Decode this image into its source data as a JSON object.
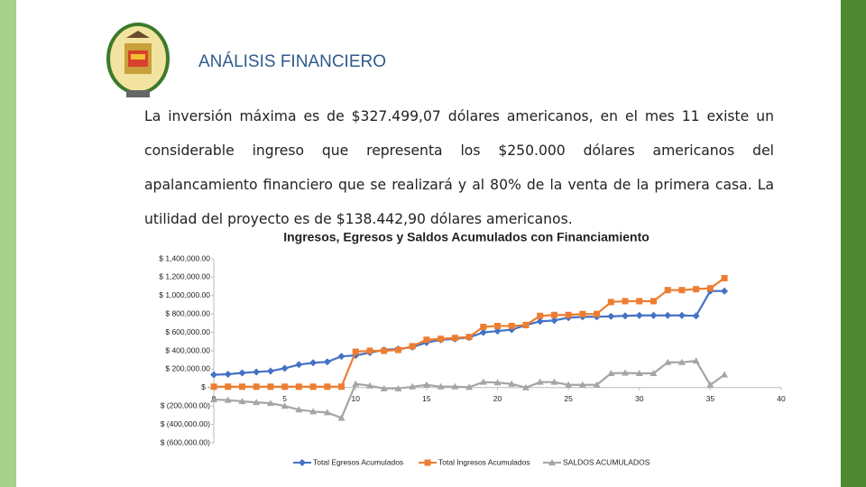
{
  "header": {
    "title": "ANÁLISIS FINANCIERO"
  },
  "paragraph": "La inversión máxima es de $327.499,07 dólares americanos, en el mes 11 existe un considerable ingreso que representa los $250.000 dólares americanos del apalancamiento financiero que se realizará y al 80% de la venta de la primera casa. La utilidad del proyecto es de $138.442,90 dólares americanos.",
  "chart_data": {
    "type": "line",
    "title": "Ingresos, Egresos y Saldos Acumulados con Financiamiento",
    "x": [
      0,
      1,
      2,
      3,
      4,
      5,
      6,
      7,
      8,
      9,
      10,
      11,
      12,
      13,
      14,
      15,
      16,
      17,
      18,
      19,
      20,
      21,
      22,
      23,
      24,
      25,
      26,
      27,
      28,
      29,
      30,
      31,
      32,
      33,
      34,
      35,
      36
    ],
    "series": [
      {
        "name": "Total Egresos Acumulados",
        "color": "#4472c4",
        "marker": "diamond",
        "values": [
          140000,
          145000,
          160000,
          170000,
          180000,
          210000,
          250000,
          270000,
          280000,
          340000,
          350000,
          380000,
          410000,
          420000,
          440000,
          490000,
          520000,
          530000,
          545000,
          600000,
          615000,
          630000,
          680000,
          720000,
          730000,
          760000,
          770000,
          770000,
          775000,
          780000,
          785000,
          785000,
          785000,
          785000,
          780000,
          1050000,
          1050000
        ]
      },
      {
        "name": "Total Ingresos Acumulados",
        "color": "#ed7d31",
        "marker": "square",
        "values": [
          10000,
          10000,
          10000,
          10000,
          10000,
          10000,
          10000,
          10000,
          10000,
          10000,
          390000,
          400000,
          400000,
          410000,
          450000,
          520000,
          530000,
          540000,
          550000,
          660000,
          670000,
          670000,
          680000,
          780000,
          790000,
          790000,
          800000,
          800000,
          930000,
          940000,
          940000,
          940000,
          1060000,
          1060000,
          1070000,
          1080000,
          1190000
        ]
      },
      {
        "name": "SALDOS ACUMULADOS",
        "color": "#a5a5a5",
        "marker": "triangle",
        "values": [
          -130000,
          -135000,
          -150000,
          -160000,
          -170000,
          -200000,
          -240000,
          -260000,
          -270000,
          -330000,
          40000,
          20000,
          -10000,
          -10000,
          10000,
          30000,
          10000,
          10000,
          5000,
          60000,
          55000,
          40000,
          0,
          60000,
          60000,
          30000,
          30000,
          30000,
          155000,
          160000,
          155000,
          155000,
          275000,
          275000,
          290000,
          30000,
          140000
        ]
      }
    ],
    "xlim": [
      0,
      40
    ],
    "xticks": [
      0,
      5,
      10,
      15,
      20,
      25,
      30,
      35,
      40
    ],
    "ylim": [
      -600000,
      1400000
    ],
    "yticks": [
      {
        "value": -600000,
        "label": "$ (600,000.00)"
      },
      {
        "value": -400000,
        "label": "$ (400,000.00)"
      },
      {
        "value": -200000,
        "label": "$ (200,000.00)"
      },
      {
        "value": 0,
        "label": "$ -"
      },
      {
        "value": 200000,
        "label": "$ 200,000.00"
      },
      {
        "value": 400000,
        "label": "$ 400,000.00"
      },
      {
        "value": 600000,
        "label": "$ 600,000.00"
      },
      {
        "value": 800000,
        "label": "$ 800,000.00"
      },
      {
        "value": 1000000,
        "label": "$ 1,000,000.00"
      },
      {
        "value": 1200000,
        "label": "$ 1,200,000.00"
      },
      {
        "value": 1400000,
        "label": "$ 1,400,000.00"
      }
    ],
    "grid": false,
    "legend": "bottom"
  }
}
